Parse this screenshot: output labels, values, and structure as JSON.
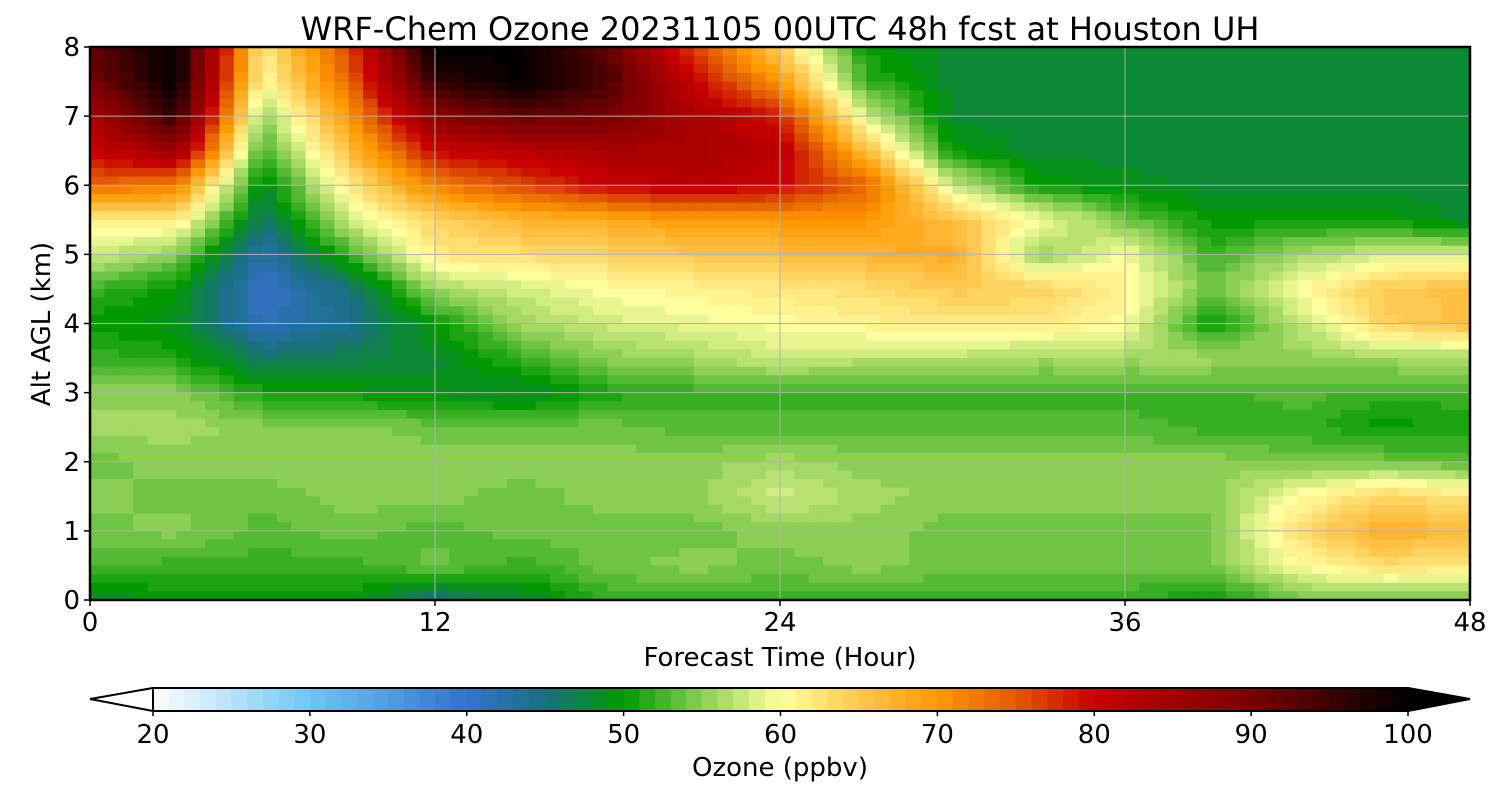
{
  "chart_data": {
    "type": "heatmap",
    "title": "WRF-Chem Ozone  20231105 00UTC 48h fcst at Houston UH",
    "xlabel": "Forecast Time (Hour)",
    "ylabel": "Alt AGL (km)",
    "xlim": [
      0,
      48
    ],
    "ylim": [
      0,
      8
    ],
    "x_ticks": [
      0,
      12,
      24,
      36,
      48
    ],
    "y_ticks": [
      0,
      1,
      2,
      3,
      4,
      5,
      6,
      7,
      8
    ],
    "grid": true,
    "x": [
      0,
      3,
      6,
      9,
      12,
      15,
      18,
      21,
      24,
      27,
      30,
      33,
      36,
      39,
      42,
      45,
      48
    ],
    "y": [
      0,
      0.5,
      1,
      1.5,
      2,
      2.5,
      3,
      3.5,
      4,
      4.5,
      5,
      5.5,
      6,
      6.5,
      7,
      7.5,
      8
    ],
    "z": [
      [
        48,
        50,
        50,
        50,
        45,
        48,
        52,
        52,
        52,
        52,
        52,
        52,
        52,
        50,
        54,
        54,
        54
      ],
      [
        53,
        52,
        52,
        52,
        54,
        52,
        54,
        55,
        54,
        55,
        54,
        54,
        54,
        54,
        60,
        63,
        62
      ],
      [
        54,
        55,
        53,
        54,
        53,
        54,
        54,
        54,
        55,
        55,
        54,
        54,
        54,
        54,
        63,
        68,
        66
      ],
      [
        55,
        54,
        54,
        55,
        55,
        54,
        55,
        55,
        58,
        56,
        55,
        55,
        55,
        55,
        60,
        64,
        62
      ],
      [
        54,
        55,
        55,
        55,
        55,
        55,
        55,
        55,
        56,
        55,
        55,
        55,
        55,
        55,
        54,
        54,
        53
      ],
      [
        56,
        56,
        55,
        55,
        54,
        54,
        54,
        53,
        53,
        53,
        53,
        53,
        53,
        52,
        52,
        50,
        51
      ],
      [
        55,
        55,
        51,
        50,
        49,
        48,
        51,
        52,
        52,
        52,
        52,
        52,
        52,
        52,
        53,
        52,
        52
      ],
      [
        52,
        51,
        46,
        47,
        48,
        52,
        55,
        56,
        58,
        57,
        57,
        56,
        56,
        56,
        55,
        56,
        56
      ],
      [
        50,
        49,
        41,
        44,
        50,
        56,
        58,
        59,
        60,
        61,
        62,
        62,
        60,
        50,
        57,
        64,
        66
      ],
      [
        52,
        50,
        40,
        45,
        56,
        58,
        60,
        61,
        62,
        63,
        65,
        64,
        61,
        54,
        60,
        65,
        66
      ],
      [
        58,
        55,
        42,
        52,
        62,
        63,
        64,
        65,
        66,
        67,
        68,
        55,
        60,
        52,
        56,
        58,
        58
      ],
      [
        62,
        62,
        46,
        58,
        64,
        67,
        68,
        70,
        70,
        70,
        66,
        60,
        54,
        50,
        50,
        50,
        48
      ],
      [
        74,
        72,
        48,
        62,
        72,
        76,
        80,
        82,
        80,
        74,
        58,
        50,
        49,
        48,
        48,
        48,
        48
      ],
      [
        80,
        86,
        52,
        66,
        80,
        82,
        84,
        84,
        82,
        66,
        50,
        48,
        48,
        48,
        48,
        48,
        48
      ],
      [
        84,
        96,
        55,
        70,
        88,
        92,
        90,
        84,
        78,
        58,
        48,
        48,
        48,
        48,
        48,
        48,
        48
      ],
      [
        90,
        100,
        60,
        74,
        96,
        100,
        94,
        80,
        70,
        52,
        48,
        48,
        48,
        48,
        48,
        48,
        48
      ],
      [
        92,
        100,
        62,
        76,
        100,
        100,
        92,
        76,
        64,
        50,
        48,
        48,
        48,
        48,
        48,
        48,
        48
      ]
    ],
    "colorbar": {
      "label": "Ozone  (ppbv)",
      "ticks": [
        20,
        30,
        40,
        50,
        60,
        70,
        80,
        90,
        100
      ],
      "min": 20,
      "max": 100,
      "extend": "both"
    },
    "colors": {
      "stops": [
        [
          20,
          "#ffffff"
        ],
        [
          30,
          "#6ec6f3"
        ],
        [
          40,
          "#3472c9"
        ],
        [
          45,
          "#1a6f80"
        ],
        [
          50,
          "#009900"
        ],
        [
          55,
          "#8ccf55"
        ],
        [
          60,
          "#ffffa0"
        ],
        [
          65,
          "#ffc850"
        ],
        [
          70,
          "#ff9900"
        ],
        [
          75,
          "#e15a00"
        ],
        [
          80,
          "#c80000"
        ],
        [
          90,
          "#780000"
        ],
        [
          100,
          "#000000"
        ]
      ],
      "grid": "#b0b0b0",
      "frame": "#000000"
    }
  }
}
